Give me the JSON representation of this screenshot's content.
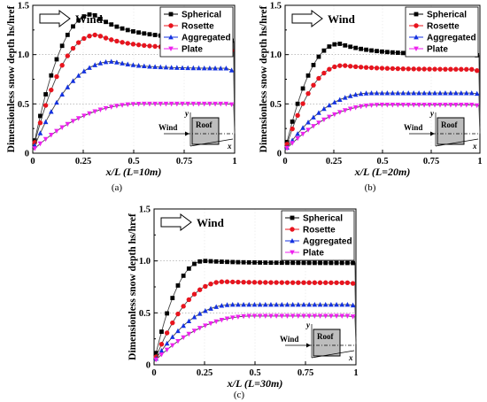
{
  "chart_data": [
    {
      "id": "a",
      "type": "line",
      "panel_label": "(a)",
      "xlabel": "x/L (L=10m)",
      "ylabel": "Dimensionless snow depth hs/href",
      "xlim": [
        0,
        1
      ],
      "ylim": [
        0,
        1.5
      ],
      "xticks": [
        "0",
        "0.25",
        "0.5",
        "0.75",
        "1"
      ],
      "yticks": [
        "0",
        "0.5",
        "1.0",
        "1.5"
      ],
      "grid": "dotted horizontal",
      "legend": "top-right",
      "wind_label": "Wind",
      "inset": {
        "wind": "Wind",
        "roof": "Roof",
        "x_axis": "x",
        "y_axis": "y"
      },
      "series": [
        {
          "name": "Spherical",
          "color": "#000000",
          "marker": "square",
          "peak_x": 0.3,
          "peak_y": 1.41,
          "plateau": 1.16,
          "end_y": 1.13
        },
        {
          "name": "Rosette",
          "color": "#e8141e",
          "marker": "circle",
          "peak_x": 0.32,
          "peak_y": 1.2,
          "plateau": 1.06,
          "end_y": 1.03
        },
        {
          "name": "Aggregated",
          "color": "#1432e0",
          "marker": "triangle-up",
          "peak_x": 0.4,
          "peak_y": 0.93,
          "plateau": 0.86,
          "end_y": 0.83
        },
        {
          "name": "Plate",
          "color": "#ee22ee",
          "marker": "triangle-down",
          "peak_x": 0.55,
          "peak_y": 0.5,
          "plateau": 0.5,
          "end_y": 0.49
        }
      ]
    },
    {
      "id": "b",
      "type": "line",
      "panel_label": "(b)",
      "xlabel": "x/L (L=20m)",
      "ylabel": "Dimensionless snow depth hs/href",
      "xlim": [
        0,
        1
      ],
      "ylim": [
        0,
        1.5
      ],
      "xticks": [
        "0",
        "0.25",
        "0.5",
        "0.75",
        "1"
      ],
      "yticks": [
        "0",
        "0.5",
        "1.0",
        "1.5"
      ],
      "grid": "dotted horizontal",
      "legend": "top-right",
      "wind_label": "Wind",
      "inset": {
        "wind": "Wind",
        "roof": "Roof",
        "x_axis": "x",
        "y_axis": "y"
      },
      "series": [
        {
          "name": "Spherical",
          "color": "#000000",
          "marker": "square",
          "peak_x": 0.28,
          "peak_y": 1.11,
          "plateau": 1.0,
          "end_y": 0.99
        },
        {
          "name": "Rosette",
          "color": "#e8141e",
          "marker": "circle",
          "peak_x": 0.3,
          "peak_y": 0.89,
          "plateau": 0.85,
          "end_y": 0.83
        },
        {
          "name": "Aggregated",
          "color": "#1432e0",
          "marker": "triangle-up",
          "peak_x": 0.45,
          "peak_y": 0.61,
          "plateau": 0.61,
          "end_y": 0.6
        },
        {
          "name": "Plate",
          "color": "#ee22ee",
          "marker": "triangle-down",
          "peak_x": 0.5,
          "peak_y": 0.49,
          "plateau": 0.49,
          "end_y": 0.48
        }
      ]
    },
    {
      "id": "c",
      "type": "line",
      "panel_label": "(c)",
      "xlabel": "x/L (L=30m)",
      "ylabel": "Dimensionless snow depth hs/href",
      "xlim": [
        0,
        1
      ],
      "ylim": [
        0,
        1.5
      ],
      "xticks": [
        "0",
        "0.25",
        "0.5",
        "0.75",
        "1"
      ],
      "yticks": [
        "0",
        "0.5",
        "1.0",
        "1.5"
      ],
      "grid": "dotted horizontal",
      "legend": "top-right",
      "wind_label": "Wind",
      "inset": {
        "wind": "Wind",
        "roof": "Roof",
        "x_axis": "x",
        "y_axis": "y"
      },
      "series": [
        {
          "name": "Spherical",
          "color": "#000000",
          "marker": "square",
          "peak_x": 0.25,
          "peak_y": 1.0,
          "plateau": 0.98,
          "end_y": 0.98
        },
        {
          "name": "Rosette",
          "color": "#e8141e",
          "marker": "circle",
          "peak_x": 0.35,
          "peak_y": 0.8,
          "plateau": 0.79,
          "end_y": 0.78
        },
        {
          "name": "Aggregated",
          "color": "#1432e0",
          "marker": "triangle-up",
          "peak_x": 0.4,
          "peak_y": 0.58,
          "plateau": 0.58,
          "end_y": 0.57
        },
        {
          "name": "Plate",
          "color": "#ee22ee",
          "marker": "triangle-down",
          "peak_x": 0.5,
          "peak_y": 0.47,
          "plateau": 0.47,
          "end_y": 0.46
        }
      ]
    }
  ]
}
